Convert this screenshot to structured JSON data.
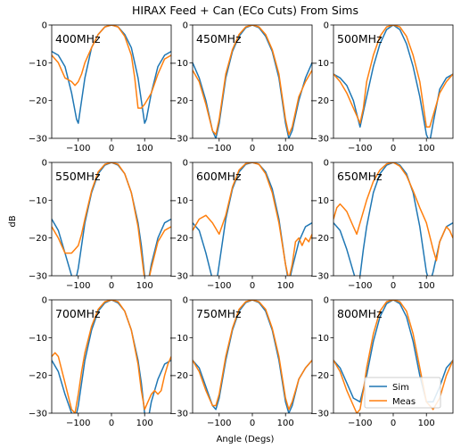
{
  "figure": {
    "title": "HIRAX Feed + Can (ECo Cuts) From Sims",
    "xlabel": "Angle (Degs)",
    "ylabel": "dB",
    "colors": {
      "sim": "#1f77b4",
      "meas": "#ff7f0e"
    }
  },
  "legend": {
    "placement": "lower-right of bottom-right panel",
    "items": [
      "Sim",
      "Meas"
    ]
  },
  "chart_data": [
    {
      "type": "line",
      "panel": "400MHz",
      "label": "400MHz",
      "xlim": [
        -180,
        180
      ],
      "ylim": [
        -30,
        0
      ],
      "xticks": [
        -100,
        0,
        100
      ],
      "yticks": [
        0,
        -10,
        -20,
        -30
      ],
      "series": [
        {
          "name": "Sim",
          "x": [
            -180,
            -160,
            -140,
            -120,
            -105,
            -100,
            -90,
            -80,
            -60,
            -40,
            -20,
            0,
            20,
            40,
            60,
            80,
            90,
            100,
            105,
            120,
            140,
            160,
            180
          ],
          "y": [
            -7,
            -8,
            -11,
            -18,
            -25,
            -26,
            -20,
            -14,
            -6,
            -2.5,
            -0.5,
            0,
            -0.5,
            -2.5,
            -6,
            -14,
            -20,
            -26,
            -25,
            -18,
            -11,
            -8,
            -7
          ]
        },
        {
          "name": "Meas",
          "x": [
            -180,
            -160,
            -140,
            -120,
            -110,
            -100,
            -90,
            -80,
            -60,
            -40,
            -20,
            0,
            20,
            40,
            60,
            70,
            80,
            90,
            100,
            120,
            140,
            160,
            180
          ],
          "y": [
            -8,
            -10,
            -14,
            -15,
            -16,
            -15,
            -13,
            -10,
            -6,
            -2.5,
            -0.5,
            0,
            -0.5,
            -3,
            -8,
            -14,
            -22,
            -22,
            -21,
            -18,
            -13,
            -9,
            -8
          ]
        }
      ]
    },
    {
      "type": "line",
      "panel": "450MHz",
      "label": "450MHz",
      "xlim": [
        -180,
        180
      ],
      "ylim": [
        -30,
        0
      ],
      "xticks": [
        -100,
        0,
        100
      ],
      "yticks": [
        0,
        -10,
        -20,
        -30
      ],
      "series": [
        {
          "name": "Sim",
          "x": [
            -180,
            -160,
            -140,
            -120,
            -110,
            -100,
            -80,
            -60,
            -40,
            -20,
            0,
            20,
            40,
            60,
            80,
            100,
            110,
            120,
            140,
            160,
            180
          ],
          "y": [
            -10,
            -14,
            -20,
            -28,
            -30,
            -26,
            -14,
            -7,
            -3,
            -0.7,
            0,
            -0.7,
            -3,
            -7,
            -14,
            -26,
            -30,
            -28,
            -20,
            -14,
            -10
          ]
        },
        {
          "name": "Meas",
          "x": [
            -180,
            -160,
            -140,
            -120,
            -110,
            -100,
            -80,
            -60,
            -40,
            -20,
            0,
            20,
            40,
            60,
            80,
            100,
            110,
            120,
            140,
            160,
            180
          ],
          "y": [
            -12,
            -15,
            -21,
            -28,
            -29,
            -25,
            -13,
            -6.5,
            -2.5,
            -0.5,
            0,
            -0.5,
            -2.5,
            -6.5,
            -13,
            -25,
            -29,
            -27,
            -19,
            -15,
            -12
          ]
        }
      ]
    },
    {
      "type": "line",
      "panel": "500MHz",
      "label": "500MHz",
      "xlim": [
        -180,
        180
      ],
      "ylim": [
        -30,
        0
      ],
      "xticks": [
        -100,
        0,
        100
      ],
      "yticks": [
        0,
        -10,
        -20,
        -30
      ],
      "series": [
        {
          "name": "Sim",
          "x": [
            -180,
            -160,
            -140,
            -120,
            -100,
            -80,
            -60,
            -40,
            -20,
            0,
            20,
            40,
            60,
            80,
            100,
            110,
            120,
            140,
            160,
            180
          ],
          "y": [
            -13,
            -14,
            -16,
            -20,
            -27,
            -19,
            -11,
            -5,
            -1.2,
            0,
            -1.2,
            -5,
            -11,
            -19,
            -29,
            -31,
            -26,
            -17,
            -14,
            -13
          ]
        },
        {
          "name": "Meas",
          "x": [
            -180,
            -160,
            -140,
            -120,
            -110,
            -100,
            -90,
            -80,
            -60,
            -40,
            -20,
            0,
            20,
            40,
            60,
            80,
            100,
            110,
            120,
            140,
            160,
            180
          ],
          "y": [
            -13,
            -15,
            -18,
            -22,
            -24,
            -26,
            -22,
            -15,
            -8,
            -3,
            -0.5,
            0,
            -0.5,
            -3,
            -8,
            -15,
            -27,
            -27,
            -24,
            -18,
            -15,
            -13
          ]
        }
      ]
    },
    {
      "type": "line",
      "panel": "550MHz",
      "label": "550MHz",
      "xlim": [
        -180,
        180
      ],
      "ylim": [
        -30,
        0
      ],
      "xticks": [
        -100,
        0,
        100
      ],
      "yticks": [
        0,
        -10,
        -20,
        -30
      ],
      "series": [
        {
          "name": "Sim",
          "x": [
            -180,
            -160,
            -140,
            -120,
            -110,
            -100,
            -90,
            -80,
            -60,
            -40,
            -20,
            0,
            20,
            40,
            60,
            80,
            90,
            100,
            110,
            120,
            140,
            160,
            180
          ],
          "y": [
            -15,
            -18,
            -24,
            -30,
            -32,
            -28,
            -22,
            -16,
            -8,
            -3,
            -0.7,
            0,
            -0.7,
            -3,
            -8,
            -16,
            -22,
            -30,
            -32,
            -27,
            -20,
            -16,
            -15
          ]
        },
        {
          "name": "Meas",
          "x": [
            -180,
            -160,
            -140,
            -120,
            -110,
            -100,
            -90,
            -80,
            -60,
            -40,
            -20,
            0,
            20,
            40,
            60,
            80,
            90,
            100,
            110,
            120,
            140,
            160,
            180
          ],
          "y": [
            -17,
            -20,
            -24,
            -24,
            -23,
            -22,
            -19,
            -15,
            -7.5,
            -2.5,
            -0.5,
            0,
            -0.5,
            -3,
            -8,
            -17,
            -24,
            -31,
            -32,
            -28,
            -21,
            -18,
            -17
          ]
        }
      ]
    },
    {
      "type": "line",
      "panel": "600MHz",
      "label": "600MHz",
      "xlim": [
        -180,
        180
      ],
      "ylim": [
        -30,
        0
      ],
      "xticks": [
        -100,
        0,
        100
      ],
      "yticks": [
        0,
        -10,
        -20,
        -30
      ],
      "series": [
        {
          "name": "Sim",
          "x": [
            -180,
            -160,
            -140,
            -120,
            -110,
            -100,
            -80,
            -60,
            -40,
            -20,
            0,
            20,
            40,
            60,
            80,
            100,
            110,
            120,
            140,
            160,
            180
          ],
          "y": [
            -16,
            -18,
            -24,
            -31,
            -33,
            -27,
            -15,
            -7,
            -2.5,
            -0.5,
            0,
            -0.5,
            -2.5,
            -7,
            -15,
            -27,
            -32,
            -28,
            -21,
            -17,
            -16
          ]
        },
        {
          "name": "Meas",
          "x": [
            -180,
            -160,
            -140,
            -120,
            -100,
            -80,
            -60,
            -40,
            -20,
            0,
            20,
            40,
            60,
            80,
            100,
            110,
            120,
            130,
            140,
            150,
            160,
            170,
            180
          ],
          "y": [
            -18,
            -15,
            -14,
            -16,
            -19,
            -14,
            -6.5,
            -2,
            -0.3,
            0,
            -0.5,
            -3,
            -8,
            -16,
            -27,
            -31,
            -27,
            -21,
            -20,
            -22,
            -20,
            -21,
            -19
          ]
        }
      ]
    },
    {
      "type": "line",
      "panel": "650MHz",
      "label": "650MHz",
      "xlim": [
        -180,
        180
      ],
      "ylim": [
        -30,
        0
      ],
      "xticks": [
        -100,
        0,
        100
      ],
      "yticks": [
        0,
        -10,
        -20,
        -30
      ],
      "series": [
        {
          "name": "Sim",
          "x": [
            -180,
            -160,
            -140,
            -120,
            -110,
            -100,
            -90,
            -80,
            -60,
            -40,
            -20,
            0,
            20,
            40,
            60,
            80,
            100,
            110,
            120,
            140,
            160,
            180
          ],
          "y": [
            -16,
            -18,
            -23,
            -29,
            -32,
            -30,
            -23,
            -17,
            -8,
            -3,
            -0.7,
            0,
            -0.7,
            -3,
            -8,
            -17,
            -29,
            -32,
            -29,
            -21,
            -17,
            -16
          ]
        },
        {
          "name": "Meas",
          "x": [
            -180,
            -170,
            -160,
            -150,
            -140,
            -130,
            -120,
            -110,
            -100,
            -80,
            -60,
            -40,
            -20,
            0,
            20,
            40,
            60,
            80,
            100,
            120,
            130,
            140,
            150,
            160,
            170,
            180
          ],
          "y": [
            -15,
            -12,
            -11,
            -12,
            -13,
            -15,
            -17,
            -19,
            -16,
            -10,
            -5,
            -2,
            -0.4,
            0,
            -1,
            -3.5,
            -7.5,
            -12,
            -16,
            -23,
            -26,
            -21,
            -19,
            -17,
            -18,
            -20
          ]
        }
      ]
    },
    {
      "type": "line",
      "panel": "700MHz",
      "label": "700MHz",
      "xlim": [
        -180,
        180
      ],
      "ylim": [
        -30,
        0
      ],
      "xticks": [
        -100,
        0,
        100
      ],
      "yticks": [
        0,
        -10,
        -20,
        -30
      ],
      "series": [
        {
          "name": "Sim",
          "x": [
            -180,
            -160,
            -140,
            -120,
            -110,
            -100,
            -90,
            -80,
            -60,
            -40,
            -20,
            0,
            20,
            40,
            60,
            80,
            90,
            100,
            110,
            120,
            140,
            160,
            180
          ],
          "y": [
            -16,
            -19,
            -25,
            -30,
            -32,
            -28,
            -22,
            -16,
            -8,
            -3,
            -0.8,
            0,
            -0.8,
            -3,
            -8,
            -16,
            -22,
            -30,
            -32,
            -27,
            -21,
            -17,
            -16
          ]
        },
        {
          "name": "Meas",
          "x": [
            -180,
            -170,
            -160,
            -140,
            -120,
            -110,
            -100,
            -90,
            -80,
            -60,
            -40,
            -20,
            0,
            20,
            40,
            60,
            80,
            90,
            100,
            110,
            120,
            130,
            140,
            150,
            160,
            170,
            180
          ],
          "y": [
            -15,
            -14,
            -15,
            -22,
            -29,
            -30,
            -25,
            -19,
            -14,
            -7,
            -2.5,
            -0.5,
            0,
            -0.5,
            -3,
            -8,
            -17,
            -24,
            -29,
            -27,
            -25,
            -24,
            -25,
            -24,
            -20,
            -17,
            -15
          ]
        }
      ]
    },
    {
      "type": "line",
      "panel": "750MHz",
      "label": "750MHz",
      "xlim": [
        -180,
        180
      ],
      "ylim": [
        -30,
        0
      ],
      "xticks": [
        -100,
        0,
        100
      ],
      "yticks": [
        0,
        -10,
        -20,
        -30
      ],
      "series": [
        {
          "name": "Sim",
          "x": [
            -180,
            -160,
            -140,
            -120,
            -110,
            -100,
            -80,
            -60,
            -40,
            -20,
            0,
            20,
            40,
            60,
            80,
            100,
            110,
            120,
            140,
            160,
            180
          ],
          "y": [
            -16,
            -18,
            -23,
            -28,
            -29,
            -26,
            -16,
            -8,
            -3,
            -0.7,
            0,
            -0.7,
            -3,
            -8,
            -16,
            -27,
            -30,
            -28,
            -21,
            -18,
            -16
          ]
        },
        {
          "name": "Meas",
          "x": [
            -180,
            -160,
            -140,
            -120,
            -110,
            -100,
            -80,
            -60,
            -40,
            -20,
            0,
            20,
            40,
            60,
            80,
            100,
            110,
            120,
            140,
            160,
            180
          ],
          "y": [
            -16,
            -19,
            -24,
            -28,
            -28,
            -25,
            -15,
            -7.5,
            -2.5,
            -0.5,
            0,
            -0.5,
            -2.5,
            -7.5,
            -15,
            -26,
            -29,
            -27,
            -21,
            -18,
            -16
          ]
        }
      ]
    },
    {
      "type": "line",
      "panel": "800MHz",
      "label": "800MHz",
      "xlim": [
        -180,
        180
      ],
      "ylim": [
        -30,
        0
      ],
      "xticks": [
        -100,
        0,
        100
      ],
      "yticks": [
        0,
        -10,
        -20,
        -30
      ],
      "series": [
        {
          "name": "Sim",
          "x": [
            -180,
            -160,
            -140,
            -120,
            -100,
            -80,
            -60,
            -40,
            -20,
            0,
            20,
            40,
            60,
            80,
            100,
            120,
            140,
            160,
            180
          ],
          "y": [
            -16,
            -18,
            -22,
            -26,
            -27,
            -20,
            -11,
            -4.5,
            -1,
            0,
            -1,
            -4.5,
            -11,
            -20,
            -27,
            -27,
            -23,
            -18,
            -16
          ]
        },
        {
          "name": "Meas",
          "x": [
            -180,
            -160,
            -140,
            -120,
            -110,
            -100,
            -90,
            -80,
            -60,
            -40,
            -20,
            0,
            20,
            40,
            60,
            80,
            100,
            120,
            140,
            160,
            180
          ],
          "y": [
            -16,
            -19,
            -24,
            -28,
            -30,
            -29,
            -24,
            -18,
            -9,
            -3,
            -0.5,
            0,
            -0.5,
            -3,
            -9,
            -18,
            -27,
            -29,
            -26,
            -20,
            -16
          ]
        }
      ]
    }
  ]
}
